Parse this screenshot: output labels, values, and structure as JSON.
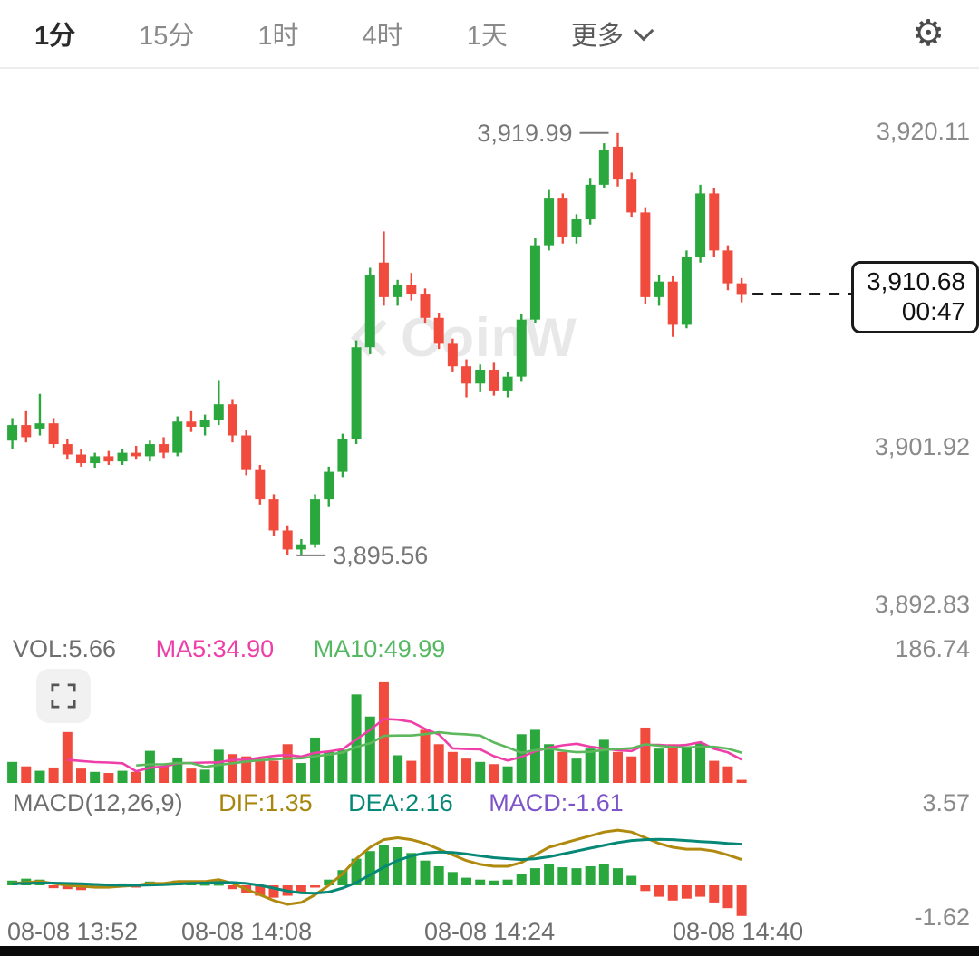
{
  "topbar": {
    "tabs": [
      {
        "label": "1分",
        "active": true
      },
      {
        "label": "15分",
        "active": false
      },
      {
        "label": "1时",
        "active": false
      },
      {
        "label": "4时",
        "active": false
      },
      {
        "label": "1天",
        "active": false
      }
    ],
    "more_label": "更多",
    "settings_icon_glyph": "⚙"
  },
  "main_chart": {
    "axis_labels": [
      "3,920.11",
      "3,901.92",
      "3,892.83"
    ],
    "high_label": "3,919.99",
    "low_label": "3,895.56",
    "price_box": {
      "price": "3,910.68",
      "countdown": "00:47"
    },
    "watermark": "CoinW"
  },
  "vol_pane": {
    "vol_label": "VOL:5.66",
    "ma5_label": "MA5:34.90",
    "ma10_label": "MA10:49.99",
    "scale_max_label": "186.74"
  },
  "macd_pane": {
    "title": "MACD(12,26,9)",
    "dif_label": "DIF:1.35",
    "dea_label": "DEA:2.16",
    "macd_label": "MACD:-1.61",
    "scale_max_label": "3.57",
    "scale_min_label": "-1.62"
  },
  "time_axis": {
    "labels": [
      "08-08 13:52",
      "08-08 14:08",
      "08-08 14:24",
      "08-08 14:40"
    ]
  },
  "colors": {
    "up": "#2aa83d",
    "down": "#f14b3e",
    "ma5": "#ee3fa8",
    "ma10": "#5cb85c",
    "dif": "#b08a0f",
    "dea": "#068876",
    "macd_text": "#7d55c8",
    "dashed_line": "#1a1a1a"
  },
  "chart_data": [
    {
      "type": "candlestick",
      "interval": "1分",
      "y_axis_labels": [
        3920.11,
        3901.92,
        3892.83
      ],
      "high_annotation": 3919.99,
      "low_annotation": 3895.56,
      "current_price": 3910.68,
      "countdown": "00:47",
      "x_labels": [
        "08-08 13:52",
        "08-08 14:08",
        "08-08 14:24",
        "08-08 14:40"
      ],
      "candles": [
        [
          3902.2,
          3903.5,
          3901.7,
          3903.1
        ],
        [
          3903.1,
          3903.9,
          3902.1,
          3902.4
        ],
        [
          3902.9,
          3904.9,
          3902.5,
          3903.2
        ],
        [
          3903.2,
          3903.5,
          3901.8,
          3902.0
        ],
        [
          3902.0,
          3902.3,
          3901.1,
          3901.4
        ],
        [
          3901.4,
          3901.7,
          3900.7,
          3900.9
        ],
        [
          3900.9,
          3901.5,
          3900.6,
          3901.3
        ],
        [
          3901.3,
          3901.6,
          3900.8,
          3901.0
        ],
        [
          3901.0,
          3901.7,
          3900.8,
          3901.5
        ],
        [
          3901.5,
          3901.9,
          3901.1,
          3901.3
        ],
        [
          3901.3,
          3902.2,
          3901.0,
          3902.0
        ],
        [
          3902.0,
          3902.4,
          3901.2,
          3901.5
        ],
        [
          3901.5,
          3903.6,
          3901.3,
          3903.3
        ],
        [
          3903.3,
          3903.9,
          3902.7,
          3903.0
        ],
        [
          3903.0,
          3903.7,
          3902.5,
          3903.4
        ],
        [
          3903.4,
          3905.7,
          3903.1,
          3904.3
        ],
        [
          3904.3,
          3904.6,
          3902.1,
          3902.5
        ],
        [
          3902.5,
          3902.8,
          3900.2,
          3900.5
        ],
        [
          3900.5,
          3900.8,
          3898.5,
          3898.8
        ],
        [
          3898.8,
          3899.1,
          3896.7,
          3897.0
        ],
        [
          3897.0,
          3897.3,
          3895.56,
          3895.9
        ],
        [
          3895.9,
          3896.5,
          3895.6,
          3896.2
        ],
        [
          3896.2,
          3899.1,
          3896.0,
          3898.8
        ],
        [
          3898.8,
          3900.7,
          3898.4,
          3900.4
        ],
        [
          3900.4,
          3902.6,
          3900.1,
          3902.3
        ],
        [
          3902.3,
          3908.0,
          3902.0,
          3907.6
        ],
        [
          3907.6,
          3912.2,
          3907.2,
          3911.8
        ],
        [
          3912.5,
          3914.3,
          3910.0,
          3910.5
        ],
        [
          3910.5,
          3911.5,
          3910.0,
          3911.2
        ],
        [
          3911.2,
          3911.9,
          3910.3,
          3910.7
        ],
        [
          3910.7,
          3911.0,
          3909.0,
          3909.3
        ],
        [
          3909.3,
          3909.6,
          3907.5,
          3907.8
        ],
        [
          3907.8,
          3908.1,
          3906.2,
          3906.5
        ],
        [
          3906.5,
          3906.9,
          3904.7,
          3905.5
        ],
        [
          3905.5,
          3906.6,
          3905.0,
          3906.3
        ],
        [
          3906.3,
          3906.7,
          3904.8,
          3905.1
        ],
        [
          3905.1,
          3906.2,
          3904.7,
          3905.9
        ],
        [
          3905.9,
          3909.5,
          3905.6,
          3909.2
        ],
        [
          3909.2,
          3913.9,
          3909.0,
          3913.5
        ],
        [
          3913.5,
          3916.7,
          3913.2,
          3916.2
        ],
        [
          3916.2,
          3916.5,
          3913.6,
          3914.0
        ],
        [
          3914.0,
          3915.3,
          3913.6,
          3915.0
        ],
        [
          3915.0,
          3917.4,
          3914.7,
          3917.0
        ],
        [
          3917.0,
          3919.4,
          3916.8,
          3919.0
        ],
        [
          3919.2,
          3919.99,
          3916.9,
          3917.3
        ],
        [
          3917.3,
          3917.7,
          3915.1,
          3915.4
        ],
        [
          3915.4,
          3915.7,
          3910.1,
          3910.5
        ],
        [
          3910.5,
          3911.8,
          3910.0,
          3911.4
        ],
        [
          3911.4,
          3911.7,
          3908.2,
          3908.9
        ],
        [
          3908.9,
          3913.2,
          3908.7,
          3912.8
        ],
        [
          3912.8,
          3917.0,
          3912.5,
          3916.5
        ],
        [
          3916.5,
          3916.8,
          3912.8,
          3913.2
        ],
        [
          3913.2,
          3913.5,
          3910.9,
          3911.3
        ],
        [
          3911.3,
          3911.6,
          3910.2,
          3910.68
        ]
      ]
    },
    {
      "type": "bar",
      "name": "volume",
      "current": 5.66,
      "ma5": 34.9,
      "ma10": 49.99,
      "scale_max": 186.74,
      "values": [
        38,
        30,
        22,
        28,
        92,
        26,
        20,
        18,
        22,
        20,
        58,
        30,
        46,
        26,
        24,
        60,
        52,
        48,
        44,
        40,
        70,
        36,
        82,
        56,
        60,
        160,
        120,
        182,
        50,
        40,
        96,
        70,
        56,
        44,
        38,
        34,
        30,
        88,
        96,
        70,
        56,
        44,
        62,
        78,
        56,
        48,
        100,
        62,
        70,
        64,
        72,
        40,
        30,
        5.66
      ]
    },
    {
      "type": "bar",
      "name": "macd",
      "params": "12,26,9",
      "dif_current": 1.35,
      "dea_current": 2.16,
      "macd_current": -1.61,
      "scale_max": 3.57,
      "scale_min": -1.62,
      "histogram": [
        0.25,
        0.35,
        0.3,
        -0.15,
        -0.2,
        -0.25,
        0.1,
        -0.1,
        0.1,
        -0.05,
        0.2,
        0.1,
        0.25,
        0.15,
        0.1,
        0.1,
        -0.2,
        -0.4,
        -0.55,
        -0.65,
        -0.55,
        -0.35,
        -0.1,
        0.3,
        0.8,
        1.4,
        1.8,
        2.1,
        2.0,
        1.7,
        1.3,
        1.0,
        0.7,
        0.4,
        0.3,
        0.25,
        0.3,
        0.6,
        0.9,
        1.1,
        0.95,
        0.9,
        1.0,
        1.1,
        0.9,
        0.5,
        -0.3,
        -0.6,
        -0.8,
        -0.7,
        -0.6,
        -0.9,
        -1.2,
        -1.61
      ],
      "dif": [
        0.1,
        0.15,
        0.2,
        0.1,
        0.0,
        -0.05,
        -0.1,
        -0.1,
        -0.05,
        0.0,
        0.1,
        0.1,
        0.2,
        0.2,
        0.2,
        0.3,
        0.1,
        -0.2,
        -0.5,
        -0.8,
        -1.0,
        -0.9,
        -0.5,
        0.0,
        0.6,
        1.4,
        2.0,
        2.4,
        2.5,
        2.4,
        2.2,
        1.9,
        1.6,
        1.3,
        1.1,
        1.0,
        1.0,
        1.2,
        1.6,
        2.0,
        2.2,
        2.4,
        2.6,
        2.8,
        2.9,
        2.8,
        2.5,
        2.2,
        2.0,
        1.9,
        1.9,
        1.8,
        1.6,
        1.35
      ],
      "dea": [
        0.08,
        0.1,
        0.12,
        0.12,
        0.1,
        0.08,
        0.05,
        0.02,
        0.0,
        0.0,
        0.02,
        0.04,
        0.07,
        0.1,
        0.12,
        0.15,
        0.15,
        0.1,
        0.0,
        -0.15,
        -0.3,
        -0.4,
        -0.42,
        -0.35,
        -0.15,
        0.15,
        0.55,
        0.95,
        1.3,
        1.55,
        1.7,
        1.75,
        1.73,
        1.65,
        1.55,
        1.45,
        1.4,
        1.35,
        1.4,
        1.5,
        1.65,
        1.8,
        1.95,
        2.1,
        2.25,
        2.35,
        2.4,
        2.42,
        2.4,
        2.35,
        2.3,
        2.26,
        2.2,
        2.16
      ]
    }
  ]
}
